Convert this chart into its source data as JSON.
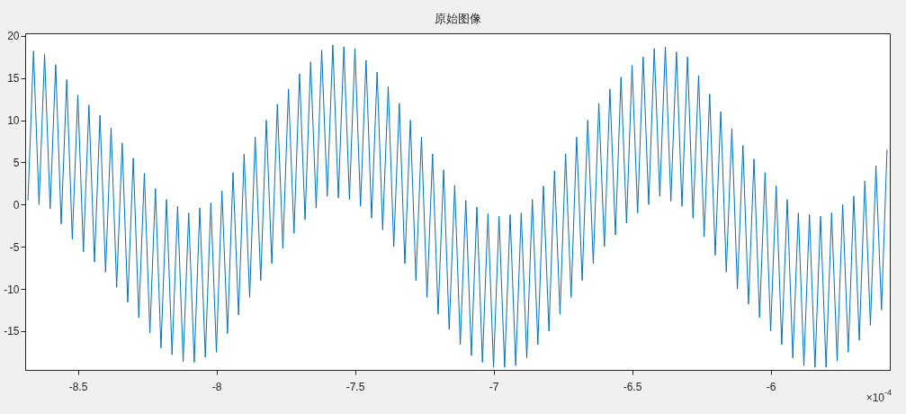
{
  "chart_data": {
    "type": "line",
    "title": "原始图像",
    "x": [
      -8.68,
      -8.66,
      -8.64,
      -8.62,
      -8.6,
      -8.58,
      -8.56,
      -8.54,
      -8.52,
      -8.5,
      -8.48,
      -8.46,
      -8.44,
      -8.42,
      -8.4,
      -8.38,
      -8.36,
      -8.34,
      -8.32,
      -8.3,
      -8.28,
      -8.26,
      -8.24,
      -8.22,
      -8.2,
      -8.18,
      -8.16,
      -8.14,
      -8.12,
      -8.1,
      -8.08,
      -8.06,
      -8.04,
      -8.02,
      -8,
      -7.98,
      -7.96,
      -7.94,
      -7.92,
      -7.9,
      -7.88,
      -7.86,
      -7.84,
      -7.82,
      -7.8,
      -7.78,
      -7.76,
      -7.74,
      -7.72,
      -7.7,
      -7.68,
      -7.66,
      -7.64,
      -7.62,
      -7.6,
      -7.58,
      -7.56,
      -7.54,
      -7.52,
      -7.5,
      -7.48,
      -7.46,
      -7.44,
      -7.42,
      -7.4,
      -7.38,
      -7.36,
      -7.34,
      -7.32,
      -7.3,
      -7.28,
      -7.26,
      -7.24,
      -7.22,
      -7.2,
      -7.18,
      -7.16,
      -7.14,
      -7.12,
      -7.1,
      -7.08,
      -7.06,
      -7.04,
      -7.02,
      -7,
      -6.98,
      -6.96,
      -6.94,
      -6.92,
      -6.9,
      -6.88,
      -6.86,
      -6.84,
      -6.82,
      -6.8,
      -6.78,
      -6.76,
      -6.74,
      -6.72,
      -6.7,
      -6.68,
      -6.66,
      -6.64,
      -6.62,
      -6.6,
      -6.58,
      -6.56,
      -6.54,
      -6.52,
      -6.5,
      -6.48,
      -6.46,
      -6.44,
      -6.42,
      -6.4,
      -6.38,
      -6.36,
      -6.34,
      -6.32,
      -6.3,
      -6.28,
      -6.26,
      -6.24,
      -6.22,
      -6.2,
      -6.18,
      -6.16,
      -6.14,
      -6.12,
      -6.1,
      -6.08,
      -6.06,
      -6.04,
      -6.02,
      -6,
      -5.98,
      -5.96,
      -5.94,
      -5.92,
      -5.9,
      -5.88,
      -5.86,
      -5.84,
      -5.82,
      -5.8,
      -5.78,
      -5.76,
      -5.74,
      -5.72,
      -5.7,
      -5.68,
      -5.66,
      -5.64,
      -5.62,
      -5.6,
      -5.58
    ],
    "series": [
      {
        "color": "#0072bd",
        "values": [
          0.5,
          18.2,
          0,
          17.8,
          -0.5,
          16.6,
          -2.3,
          14.8,
          -4.1,
          13,
          -5.6,
          11.8,
          -6.8,
          10.6,
          -8,
          9.1,
          -9.8,
          7.3,
          -11.6,
          5.5,
          -13.4,
          3.7,
          -15.2,
          1.9,
          -17,
          0.6,
          -17.8,
          -0.2,
          -18.6,
          -1,
          -18.7,
          -0.4,
          -18.1,
          0.2,
          -17.5,
          1.6,
          -15.3,
          3.8,
          -13.1,
          6,
          -11,
          8,
          -9,
          10,
          -7,
          11.9,
          -5.2,
          13.7,
          -3.4,
          15.5,
          -1.8,
          16.9,
          -0.4,
          18.3,
          1,
          18.9,
          0.8,
          18.7,
          0.6,
          18.5,
          -0.2,
          17.1,
          -1.6,
          15.7,
          -3,
          14,
          -5,
          12,
          -7,
          10,
          -9,
          8,
          -11,
          6,
          -13,
          4.1,
          -14.8,
          2.3,
          -16.6,
          0.5,
          -17.9,
          -0.3,
          -18.7,
          -1.1,
          -19.3,
          -1.4,
          -19.3,
          -1.2,
          -19.1,
          -1,
          -18.2,
          0.6,
          -16.6,
          2.2,
          -15,
          4,
          -13,
          6,
          -11,
          8,
          -9,
          10,
          -7,
          12,
          -5,
          13.7,
          -3.6,
          15.1,
          -2.2,
          16.5,
          -1,
          17.5,
          0,
          18.5,
          1,
          18.7,
          0.4,
          18.1,
          -0.2,
          17.5,
          -1.6,
          15.3,
          -3.8,
          13.1,
          -6,
          11,
          -8,
          9,
          -10,
          7,
          -11.8,
          5.4,
          -13.4,
          3.8,
          -15,
          2.2,
          -16.6,
          0.6,
          -18.2,
          -1,
          -19.1,
          -1.2,
          -19.3,
          -1.4,
          -19.3,
          -1,
          -18.5,
          0,
          -17.5,
          1,
          -16.1,
          2.8,
          -14.3,
          4.6,
          -12.5,
          6.5
        ]
      }
    ],
    "xlim": [
      -8.69,
      -5.57
    ],
    "ylim": [
      -19.6,
      20.3
    ],
    "xticks": [
      -8.5,
      -8,
      -7.5,
      -7,
      -6.5,
      -6
    ],
    "yticks": [
      -15,
      -10,
      -5,
      0,
      5,
      10,
      15,
      20
    ],
    "annotations": [
      "×10$^{-4}$"
    ]
  }
}
